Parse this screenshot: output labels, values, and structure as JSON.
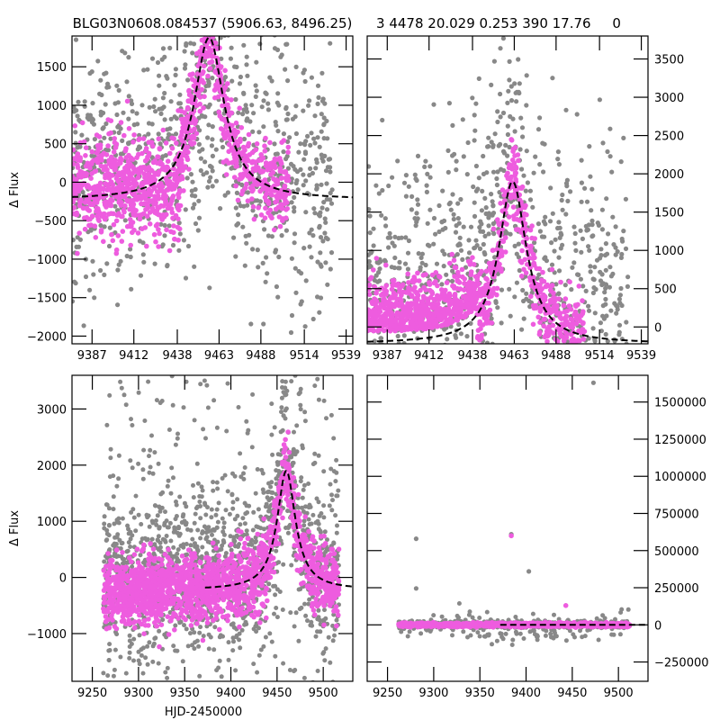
{
  "figure": {
    "title_left": "BLG03N0608.084537 (5906.63, 8496.25)",
    "title_right": "3 4478 20.029 0.253 390 17.76     0"
  },
  "colors": {
    "gray_points": "#888888",
    "magenta_points": "#EE5CDF",
    "model_line": "#000000"
  },
  "chart_data": [
    {
      "type": "scatter",
      "panel": "upper-left",
      "title": "BLG03N0608.084537 (5906.63, 8496.25)",
      "xlabel": "",
      "ylabel": "Δ Flux",
      "xlim": [
        9375,
        9543
      ],
      "ylim": [
        -2100,
        1900
      ],
      "xticks": [
        9387,
        9412,
        9438,
        9463,
        9488,
        9514,
        9539
      ],
      "xtick_labels": [
        "9387",
        "9412",
        "9438",
        "9463",
        "9488",
        "9514",
        "9539"
      ],
      "yticks": [
        -2000,
        -1500,
        -1000,
        -500,
        0,
        500,
        1000,
        1500
      ],
      "ytick_labels": [
        "−2000",
        "−1500",
        "−1000",
        "−500",
        "0",
        "500",
        "1000",
        "1500"
      ],
      "y_axis_side": "left",
      "series": [
        {
          "name": "all data",
          "color": "gray",
          "description": "scattered gray points, dense at x<9440 between -500 and 1200, broad spread"
        },
        {
          "name": "selected data",
          "color": "magenta",
          "description": "dense band near 0 at early times, rising to peak ~1850 near HJD 9457"
        },
        {
          "name": "model",
          "style": "dashed",
          "peak_x": 9457,
          "peak_y": 1880,
          "baseline": -230,
          "width": 11
        }
      ]
    },
    {
      "type": "scatter",
      "panel": "upper-right",
      "title": "3 4478 20.029 0.253 390 17.76     0",
      "xlabel": "",
      "ylabel": "",
      "xlim": [
        9375,
        9543
      ],
      "ylim": [
        -220,
        3800
      ],
      "xticks": [
        9387,
        9412,
        9438,
        9463,
        9488,
        9514,
        9539
      ],
      "xtick_labels": [
        "9387",
        "9412",
        "9438",
        "9463",
        "9488",
        "9514",
        "9539"
      ],
      "yticks": [
        0,
        500,
        1000,
        1500,
        2000,
        2500,
        3000,
        3500
      ],
      "ytick_labels": [
        "0",
        "500",
        "1000",
        "1500",
        "2000",
        "2500",
        "3000",
        "3500"
      ],
      "y_axis_side": "right",
      "series": [
        {
          "name": "all data",
          "color": "gray"
        },
        {
          "name": "selected data",
          "color": "magenta"
        },
        {
          "name": "model",
          "style": "dashed",
          "peak_x": 9462,
          "peak_y": 1900,
          "baseline": -220,
          "width": 10
        }
      ]
    },
    {
      "type": "scatter",
      "panel": "lower-left",
      "title": "",
      "xlabel": "HJD-2450000",
      "ylabel": "Δ Flux",
      "xlim": [
        9228,
        9532
      ],
      "ylim": [
        -1850,
        3600
      ],
      "xticks": [
        9250,
        9300,
        9350,
        9400,
        9450,
        9500
      ],
      "xtick_labels": [
        "9250",
        "9300",
        "9350",
        "9400",
        "9450",
        "9500"
      ],
      "yticks": [
        -1000,
        0,
        1000,
        2000,
        3000
      ],
      "ytick_labels": [
        "−1000",
        "0",
        "1000",
        "2000",
        "3000"
      ],
      "y_axis_side": "left",
      "series": [
        {
          "name": "all data",
          "color": "gray"
        },
        {
          "name": "selected data",
          "color": "magenta"
        },
        {
          "name": "model",
          "style": "dashed",
          "x_start": 9372,
          "peak_x": 9460,
          "peak_y": 1900,
          "baseline": -220,
          "width": 12
        }
      ]
    },
    {
      "type": "scatter",
      "panel": "lower-right",
      "title": "",
      "xlabel": "",
      "ylabel": "",
      "xlim": [
        9228,
        9532
      ],
      "ylim": [
        -380000,
        1680000
      ],
      "xticks": [
        9250,
        9300,
        9350,
        9400,
        9450,
        9500
      ],
      "xtick_labels": [
        "9250",
        "9300",
        "9350",
        "9400",
        "9450",
        "9500"
      ],
      "yticks": [
        -250000,
        0,
        250000,
        500000,
        750000,
        1000000,
        1250000,
        1500000
      ],
      "ytick_labels": [
        "−250000",
        "0",
        "250000",
        "500000",
        "750000",
        "1000000",
        "1250000",
        "1500000"
      ],
      "y_axis_side": "right",
      "series": [
        {
          "name": "all data",
          "color": "gray",
          "outliers": [
            [
              9473,
              1630000
            ],
            [
              9281,
              580000
            ],
            [
              9384,
              610000
            ],
            [
              9403,
              360000
            ],
            [
              9281,
              245000
            ]
          ]
        },
        {
          "name": "selected data",
          "color": "magenta",
          "outliers": [
            [
              9384,
              600000
            ],
            [
              9443,
              130000
            ]
          ]
        },
        {
          "name": "model",
          "style": "dashed",
          "x_start": 9372,
          "baseline": 0
        }
      ]
    }
  ]
}
